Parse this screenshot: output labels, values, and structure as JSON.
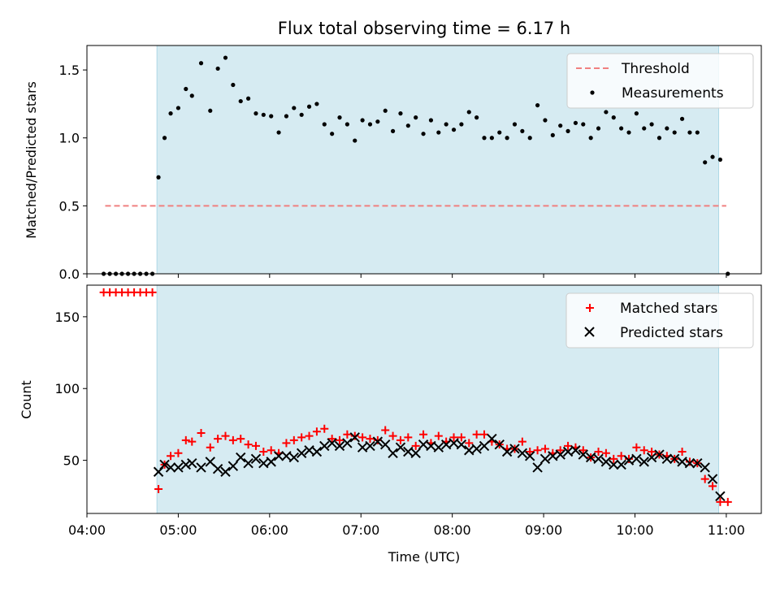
{
  "chart_data": [
    {
      "type": "scatter",
      "title": "Flux total observing time = 6.17 h",
      "ylabel": "Matched/Predicted stars",
      "ylim": [
        0,
        1.68
      ],
      "yticks": [
        "0.0",
        "0.5",
        "1.0",
        "1.5"
      ],
      "xlim": [
        "04:00",
        "11:23"
      ],
      "shaded_span": {
        "start": "04:46",
        "end": "10:55",
        "color": "#add8e6"
      },
      "legend": {
        "position": "top-right",
        "entries": [
          "Threshold",
          "Measurements"
        ]
      },
      "threshold": {
        "name": "Threshold",
        "value": 0.5,
        "x": [
          "04:12",
          "11:00"
        ],
        "color": "#f08080",
        "style": "dashed"
      },
      "series": [
        {
          "name": "Measurements",
          "color": "#000000",
          "marker": "dot",
          "points": [
            [
              "04:11",
              0
            ],
            [
              "04:15",
              0
            ],
            [
              "04:19",
              0
            ],
            [
              "04:23",
              0
            ],
            [
              "04:27",
              0
            ],
            [
              "04:31",
              0
            ],
            [
              "04:35",
              0
            ],
            [
              "04:39",
              0
            ],
            [
              "04:43",
              0
            ],
            [
              "04:47",
              0.71
            ],
            [
              "04:51",
              1.0
            ],
            [
              "04:55",
              1.18
            ],
            [
              "05:00",
              1.22
            ],
            [
              "05:05",
              1.36
            ],
            [
              "05:09",
              1.31
            ],
            [
              "05:15",
              1.55
            ],
            [
              "05:21",
              1.2
            ],
            [
              "05:26",
              1.51
            ],
            [
              "05:31",
              1.59
            ],
            [
              "05:36",
              1.39
            ],
            [
              "05:41",
              1.27
            ],
            [
              "05:46",
              1.29
            ],
            [
              "05:51",
              1.18
            ],
            [
              "05:56",
              1.17
            ],
            [
              "06:01",
              1.16
            ],
            [
              "06:06",
              1.04
            ],
            [
              "06:11",
              1.16
            ],
            [
              "06:16",
              1.22
            ],
            [
              "06:21",
              1.17
            ],
            [
              "06:26",
              1.23
            ],
            [
              "06:31",
              1.25
            ],
            [
              "06:36",
              1.1
            ],
            [
              "06:41",
              1.03
            ],
            [
              "06:46",
              1.15
            ],
            [
              "06:51",
              1.1
            ],
            [
              "06:56",
              0.98
            ],
            [
              "07:01",
              1.13
            ],
            [
              "07:06",
              1.1
            ],
            [
              "07:11",
              1.12
            ],
            [
              "07:16",
              1.2
            ],
            [
              "07:21",
              1.05
            ],
            [
              "07:26",
              1.18
            ],
            [
              "07:31",
              1.09
            ],
            [
              "07:36",
              1.15
            ],
            [
              "07:41",
              1.03
            ],
            [
              "07:46",
              1.13
            ],
            [
              "07:51",
              1.04
            ],
            [
              "07:56",
              1.1
            ],
            [
              "08:01",
              1.06
            ],
            [
              "08:06",
              1.1
            ],
            [
              "08:11",
              1.19
            ],
            [
              "08:16",
              1.15
            ],
            [
              "08:21",
              1.0
            ],
            [
              "08:26",
              1.0
            ],
            [
              "08:31",
              1.04
            ],
            [
              "08:36",
              1.0
            ],
            [
              "08:41",
              1.1
            ],
            [
              "08:46",
              1.05
            ],
            [
              "08:51",
              1.0
            ],
            [
              "08:56",
              1.24
            ],
            [
              "09:01",
              1.13
            ],
            [
              "09:06",
              1.02
            ],
            [
              "09:11",
              1.09
            ],
            [
              "09:16",
              1.05
            ],
            [
              "09:21",
              1.11
            ],
            [
              "09:26",
              1.1
            ],
            [
              "09:31",
              1.0
            ],
            [
              "09:36",
              1.07
            ],
            [
              "09:41",
              1.19
            ],
            [
              "09:46",
              1.15
            ],
            [
              "09:51",
              1.07
            ],
            [
              "09:56",
              1.04
            ],
            [
              "10:01",
              1.18
            ],
            [
              "10:06",
              1.07
            ],
            [
              "10:11",
              1.1
            ],
            [
              "10:16",
              1.0
            ],
            [
              "10:21",
              1.07
            ],
            [
              "10:26",
              1.04
            ],
            [
              "10:31",
              1.14
            ],
            [
              "10:36",
              1.04
            ],
            [
              "10:41",
              1.04
            ],
            [
              "10:46",
              0.82
            ],
            [
              "10:51",
              0.86
            ],
            [
              "10:56",
              0.84
            ],
            [
              "11:01",
              0
            ]
          ]
        }
      ]
    },
    {
      "type": "scatter",
      "xlabel": "Time (UTC)",
      "ylabel": "Count",
      "ylim": [
        13,
        172
      ],
      "yticks": [
        "50",
        "100",
        "150"
      ],
      "xlim": [
        "04:00",
        "11:23"
      ],
      "xticks": [
        "04:00",
        "05:00",
        "06:00",
        "07:00",
        "08:00",
        "09:00",
        "10:00",
        "11:00"
      ],
      "shaded_span": {
        "start": "04:46",
        "end": "10:55",
        "color": "#add8e6"
      },
      "legend": {
        "position": "top-right",
        "entries": [
          "Matched stars",
          "Predicted stars"
        ]
      },
      "series": [
        {
          "name": "Matched stars",
          "color": "#ff0000",
          "marker": "plus",
          "points": [
            [
              "04:11",
              167
            ],
            [
              "04:15",
              167
            ],
            [
              "04:19",
              167
            ],
            [
              "04:23",
              167
            ],
            [
              "04:27",
              167
            ],
            [
              "04:31",
              167
            ],
            [
              "04:35",
              167
            ],
            [
              "04:39",
              167
            ],
            [
              "04:43",
              167
            ],
            [
              "04:47",
              30
            ],
            [
              "04:51",
              47
            ],
            [
              "04:55",
              53
            ],
            [
              "05:00",
              55
            ],
            [
              "05:05",
              64
            ],
            [
              "05:09",
              63
            ],
            [
              "05:15",
              69
            ],
            [
              "05:21",
              59
            ],
            [
              "05:26",
              65
            ],
            [
              "05:31",
              67
            ],
            [
              "05:36",
              64
            ],
            [
              "05:41",
              65
            ],
            [
              "05:46",
              61
            ],
            [
              "05:51",
              60
            ],
            [
              "05:56",
              56
            ],
            [
              "06:01",
              57
            ],
            [
              "06:06",
              55
            ],
            [
              "06:11",
              62
            ],
            [
              "06:16",
              64
            ],
            [
              "06:21",
              66
            ],
            [
              "06:26",
              67
            ],
            [
              "06:31",
              70
            ],
            [
              "06:36",
              72
            ],
            [
              "06:41",
              65
            ],
            [
              "06:46",
              64
            ],
            [
              "06:51",
              68
            ],
            [
              "06:56",
              67
            ],
            [
              "07:01",
              66
            ],
            [
              "07:06",
              65
            ],
            [
              "07:11",
              64
            ],
            [
              "07:16",
              71
            ],
            [
              "07:21",
              67
            ],
            [
              "07:26",
              64
            ],
            [
              "07:31",
              66
            ],
            [
              "07:36",
              60
            ],
            [
              "07:41",
              68
            ],
            [
              "07:46",
              62
            ],
            [
              "07:51",
              67
            ],
            [
              "07:56",
              63
            ],
            [
              "08:01",
              66
            ],
            [
              "08:06",
              66
            ],
            [
              "08:11",
              62
            ],
            [
              "08:16",
              68
            ],
            [
              "08:21",
              68
            ],
            [
              "08:26",
              63
            ],
            [
              "08:31",
              61
            ],
            [
              "08:36",
              58
            ],
            [
              "08:41",
              58
            ],
            [
              "08:46",
              63
            ],
            [
              "08:51",
              56
            ],
            [
              "08:56",
              57
            ],
            [
              "09:01",
              58
            ],
            [
              "09:06",
              55
            ],
            [
              "09:11",
              57
            ],
            [
              "09:16",
              60
            ],
            [
              "09:21",
              59
            ],
            [
              "09:26",
              57
            ],
            [
              "09:31",
              52
            ],
            [
              "09:36",
              56
            ],
            [
              "09:41",
              55
            ],
            [
              "09:46",
              51
            ],
            [
              "09:51",
              53
            ],
            [
              "09:56",
              51
            ],
            [
              "10:01",
              59
            ],
            [
              "10:06",
              57
            ],
            [
              "10:11",
              56
            ],
            [
              "10:16",
              54
            ],
            [
              "10:21",
              53
            ],
            [
              "10:26",
              51
            ],
            [
              "10:31",
              56
            ],
            [
              "10:36",
              49
            ],
            [
              "10:41",
              48
            ],
            [
              "10:46",
              37
            ],
            [
              "10:51",
              32
            ],
            [
              "10:56",
              21
            ],
            [
              "11:01",
              21
            ]
          ]
        },
        {
          "name": "Predicted stars",
          "color": "#000000",
          "marker": "x",
          "points": [
            [
              "04:47",
              42
            ],
            [
              "04:51",
              47
            ],
            [
              "04:55",
              45
            ],
            [
              "05:00",
              45
            ],
            [
              "05:05",
              47
            ],
            [
              "05:09",
              48
            ],
            [
              "05:15",
              45
            ],
            [
              "05:21",
              49
            ],
            [
              "05:26",
              44
            ],
            [
              "05:31",
              42
            ],
            [
              "05:36",
              46
            ],
            [
              "05:41",
              52
            ],
            [
              "05:46",
              48
            ],
            [
              "05:51",
              51
            ],
            [
              "05:56",
              48
            ],
            [
              "06:01",
              49
            ],
            [
              "06:06",
              53
            ],
            [
              "06:11",
              53
            ],
            [
              "06:16",
              52
            ],
            [
              "06:21",
              55
            ],
            [
              "06:26",
              57
            ],
            [
              "06:31",
              56
            ],
            [
              "06:36",
              60
            ],
            [
              "06:41",
              62
            ],
            [
              "06:46",
              60
            ],
            [
              "06:51",
              62
            ],
            [
              "06:56",
              66
            ],
            [
              "07:01",
              59
            ],
            [
              "07:06",
              60
            ],
            [
              "07:11",
              63
            ],
            [
              "07:16",
              61
            ],
            [
              "07:21",
              55
            ],
            [
              "07:26",
              59
            ],
            [
              "07:31",
              56
            ],
            [
              "07:36",
              55
            ],
            [
              "07:41",
              61
            ],
            [
              "07:46",
              60
            ],
            [
              "07:51",
              59
            ],
            [
              "07:56",
              61
            ],
            [
              "08:01",
              62
            ],
            [
              "08:06",
              61
            ],
            [
              "08:11",
              57
            ],
            [
              "08:16",
              58
            ],
            [
              "08:21",
              60
            ],
            [
              "08:26",
              65
            ],
            [
              "08:31",
              61
            ],
            [
              "08:36",
              56
            ],
            [
              "08:41",
              58
            ],
            [
              "08:46",
              55
            ],
            [
              "08:51",
              53
            ],
            [
              "08:56",
              45
            ],
            [
              "09:01",
              51
            ],
            [
              "09:06",
              53
            ],
            [
              "09:11",
              54
            ],
            [
              "09:16",
              56
            ],
            [
              "09:21",
              57
            ],
            [
              "09:26",
              54
            ],
            [
              "09:31",
              52
            ],
            [
              "09:36",
              51
            ],
            [
              "09:41",
              49
            ],
            [
              "09:46",
              47
            ],
            [
              "09:51",
              47
            ],
            [
              "09:56",
              50
            ],
            [
              "10:01",
              51
            ],
            [
              "10:06",
              49
            ],
            [
              "10:11",
              52
            ],
            [
              "10:16",
              54
            ],
            [
              "10:21",
              51
            ],
            [
              "10:26",
              51
            ],
            [
              "10:31",
              49
            ],
            [
              "10:36",
              48
            ],
            [
              "10:41",
              48
            ],
            [
              "10:46",
              45
            ],
            [
              "10:51",
              37
            ],
            [
              "10:56",
              25
            ]
          ]
        }
      ]
    }
  ]
}
